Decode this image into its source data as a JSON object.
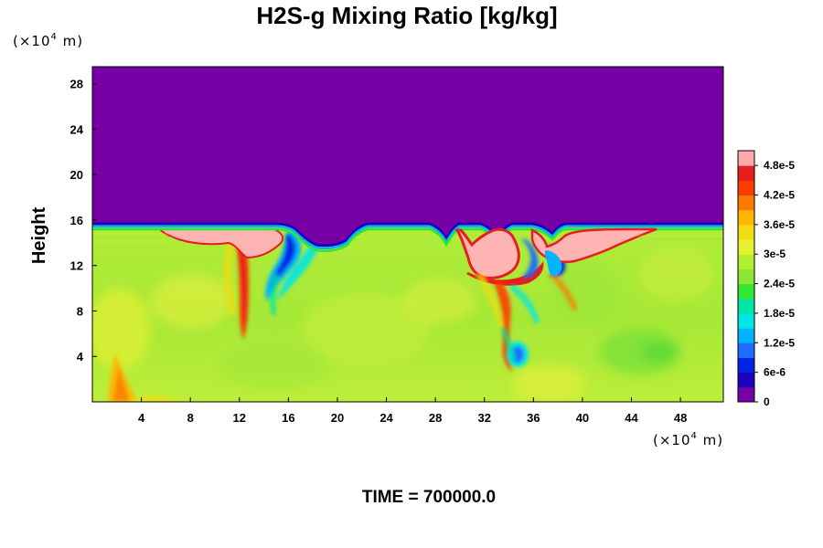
{
  "chart_data": {
    "type": "heatmap",
    "title": "H2S-g Mixing Ratio [kg/kg]",
    "ylabel": "Height",
    "xlabel": "",
    "x_unit": {
      "prefix": "(×10",
      "exp": "4",
      "suffix": " m)"
    },
    "y_unit": {
      "prefix": "(×10",
      "exp": "4",
      "suffix": " m)"
    },
    "xlim": [
      0,
      51.5
    ],
    "ylim": [
      0,
      29.5
    ],
    "x_ticks": [
      4,
      8,
      12,
      16,
      20,
      24,
      28,
      32,
      36,
      40,
      44,
      48
    ],
    "x_tick_labels": [
      "4",
      "8",
      "12",
      "16",
      "20",
      "24",
      "28",
      "32",
      "36",
      "40",
      "44",
      "48"
    ],
    "y_ticks": [
      4,
      8,
      12,
      16,
      20,
      24,
      28
    ],
    "y_tick_labels": [
      "4",
      "8",
      "12",
      "16",
      "20",
      "24",
      "28"
    ],
    "colorbar": {
      "min": 0,
      "max": 5.1e-05,
      "labels": [
        "0",
        "6e-6",
        "1.2e-5",
        "1.8e-5",
        "2.4e-5",
        "3e-5",
        "3.6e-5",
        "4.2e-5",
        "4.8e-5"
      ],
      "label_values": [
        0,
        6e-06,
        1.2e-05,
        1.8e-05,
        2.4e-05,
        3e-05,
        3.6e-05,
        4.2e-05,
        4.8e-05
      ],
      "colors": [
        "#7600a5",
        "#1c00be",
        "#0023e6",
        "#1e6cff",
        "#00b4ff",
        "#00e6e6",
        "#00e6a0",
        "#32e632",
        "#8ae632",
        "#b0ee32",
        "#e6f032",
        "#f0dc14",
        "#ffb400",
        "#ff7800",
        "#ff3c00",
        "#e61e1e",
        "#ffaaaa"
      ]
    },
    "field_summary": {
      "upper_layer_value": 0,
      "upper_layer_from_height": 15.5,
      "lower_layer_typical_value": 3.3e-05,
      "features": [
        {
          "label": "filament",
          "x": 11.5,
          "y": 10.5,
          "value": 4.6e-05
        },
        {
          "label": "high_patch",
          "x": 9.5,
          "y": 15.0,
          "value": 5e-05
        },
        {
          "label": "high_patch",
          "x": 31.5,
          "y": 13.5,
          "value": 5e-05
        },
        {
          "label": "high_patch",
          "x": 41.0,
          "y": 14.5,
          "value": 5e-05
        },
        {
          "label": "low_tongue",
          "x": 15.0,
          "y": 12.5,
          "value": 1e-05
        },
        {
          "label": "low_eddy",
          "x": 34.5,
          "y": 4.0,
          "value": 1.2e-05
        },
        {
          "label": "low_spot",
          "x": 35.2,
          "y": 11.5,
          "value": 1e-05
        }
      ]
    },
    "grid": false,
    "legend": "colorbar-right"
  },
  "time_label": "TIME = 700000.0"
}
